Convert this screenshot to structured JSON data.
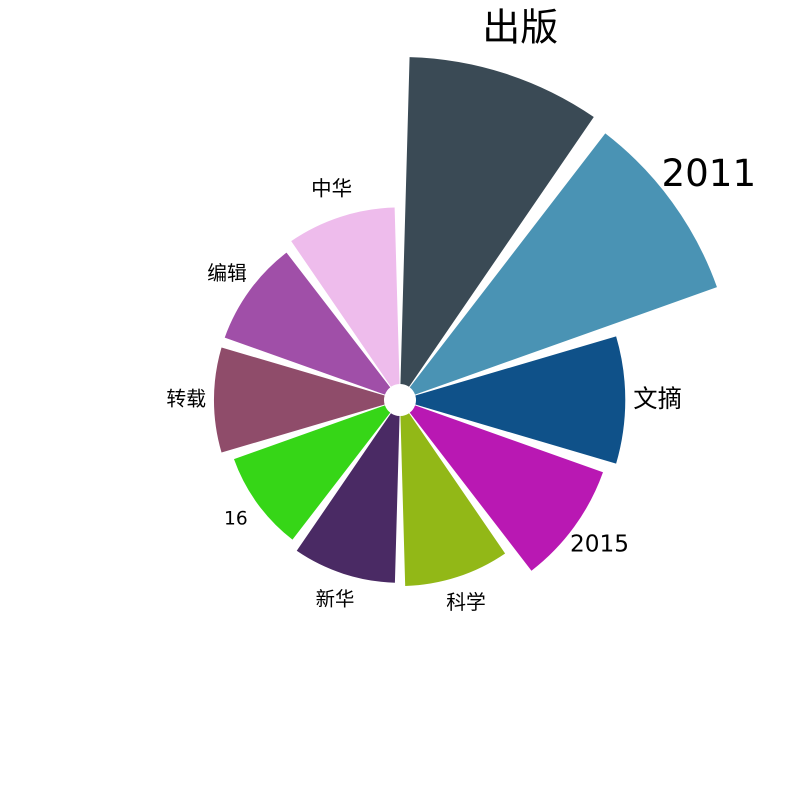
{
  "chart_data": {
    "type": "bar",
    "subtype": "polar-bar",
    "title": "",
    "categories": [
      "出版",
      "2011",
      "文摘",
      "2015",
      "科学",
      "新华",
      "16",
      "转载",
      "编辑",
      "中华"
    ],
    "values": [
      100,
      98,
      64,
      61,
      52,
      51,
      49,
      52,
      52,
      54
    ],
    "colors": [
      "#3a4a55",
      "#4a93b4",
      "#0f5189",
      "#b918b3",
      "#92b817",
      "#4a2a64",
      "#36d617",
      "#8f4c6a",
      "#a04fa8",
      "#eebcec"
    ],
    "direction": "clockwise",
    "start": "top",
    "grid": false,
    "legend": "none",
    "label_style": "outside, size proportional to value"
  }
}
